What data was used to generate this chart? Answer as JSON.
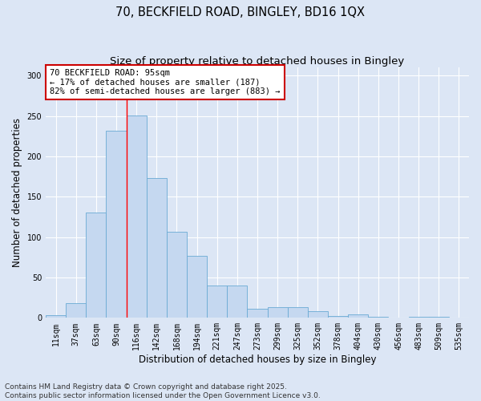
{
  "title_line1": "70, BECKFIELD ROAD, BINGLEY, BD16 1QX",
  "title_line2": "Size of property relative to detached houses in Bingley",
  "xlabel": "Distribution of detached houses by size in Bingley",
  "ylabel": "Number of detached properties",
  "footer_line1": "Contains HM Land Registry data © Crown copyright and database right 2025.",
  "footer_line2": "Contains public sector information licensed under the Open Government Licence v3.0.",
  "bar_labels": [
    "11sqm",
    "37sqm",
    "63sqm",
    "90sqm",
    "116sqm",
    "142sqm",
    "168sqm",
    "194sqm",
    "221sqm",
    "247sqm",
    "273sqm",
    "299sqm",
    "325sqm",
    "352sqm",
    "378sqm",
    "404sqm",
    "430sqm",
    "456sqm",
    "483sqm",
    "509sqm",
    "535sqm"
  ],
  "bar_values": [
    3,
    18,
    130,
    232,
    251,
    173,
    107,
    77,
    40,
    40,
    11,
    13,
    13,
    8,
    2,
    4,
    1,
    0,
    1,
    1,
    0
  ],
  "bar_color": "#c5d8f0",
  "bar_edgecolor": "#6aaad4",
  "annotation_text": "70 BECKFIELD ROAD: 95sqm\n← 17% of detached houses are smaller (187)\n82% of semi-detached houses are larger (883) →",
  "annotation_box_color": "#ffffff",
  "annotation_box_edgecolor": "#cc0000",
  "background_color": "#dce6f5",
  "plot_background": "#dce6f5",
  "grid_color": "#ffffff",
  "ylim": [
    0,
    310
  ],
  "yticks": [
    0,
    50,
    100,
    150,
    200,
    250,
    300
  ],
  "title_fontsize": 10.5,
  "subtitle_fontsize": 9.5,
  "axis_label_fontsize": 8.5,
  "tick_fontsize": 7,
  "annotation_fontsize": 7.5,
  "footer_fontsize": 6.5
}
